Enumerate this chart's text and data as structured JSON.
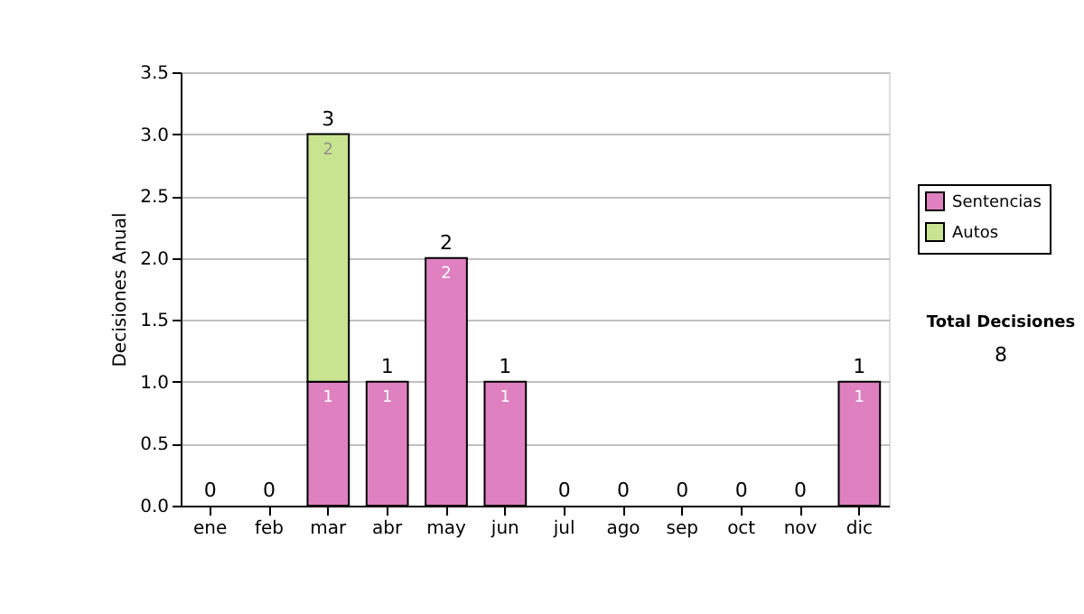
{
  "chart_data": {
    "type": "bar",
    "stacked": true,
    "ylabel": "Decisiones Anual",
    "categories": [
      "ene",
      "feb",
      "mar",
      "abr",
      "may",
      "jun",
      "jul",
      "ago",
      "sep",
      "oct",
      "nov",
      "dic"
    ],
    "series": [
      {
        "name": "Sentencias",
        "color": "#df80c0",
        "values": [
          0,
          0,
          1,
          1,
          2,
          1,
          0,
          0,
          0,
          0,
          0,
          1
        ],
        "value_labels": [
          null,
          null,
          "1",
          "1",
          "2",
          "1",
          null,
          null,
          null,
          null,
          null,
          "1"
        ]
      },
      {
        "name": "Autos",
        "color": "#c8e490",
        "values": [
          0,
          0,
          2,
          0,
          0,
          0,
          0,
          0,
          0,
          0,
          0,
          0
        ],
        "value_labels": [
          null,
          null,
          "2",
          null,
          null,
          null,
          null,
          null,
          null,
          null,
          null,
          null
        ]
      }
    ],
    "totals": [
      "0",
      "0",
      "3",
      "1",
      "2",
      "1",
      "0",
      "0",
      "0",
      "0",
      "0",
      "1"
    ],
    "ylim": [
      0,
      3.5
    ],
    "yticks": [
      {
        "value": 0,
        "label": "0.0"
      },
      {
        "value": 0.5,
        "label": "0.5"
      },
      {
        "value": 1,
        "label": "1.0"
      },
      {
        "value": 1.5,
        "label": "1.5"
      },
      {
        "value": 2,
        "label": "2.0"
      },
      {
        "value": 2.5,
        "label": "2.5"
      },
      {
        "value": 3,
        "label": "3.0"
      },
      {
        "value": 3.5,
        "label": "3.5"
      }
    ],
    "grid": "y",
    "legend": "right",
    "annotations": [
      "Total Decisiones",
      "8"
    ]
  }
}
